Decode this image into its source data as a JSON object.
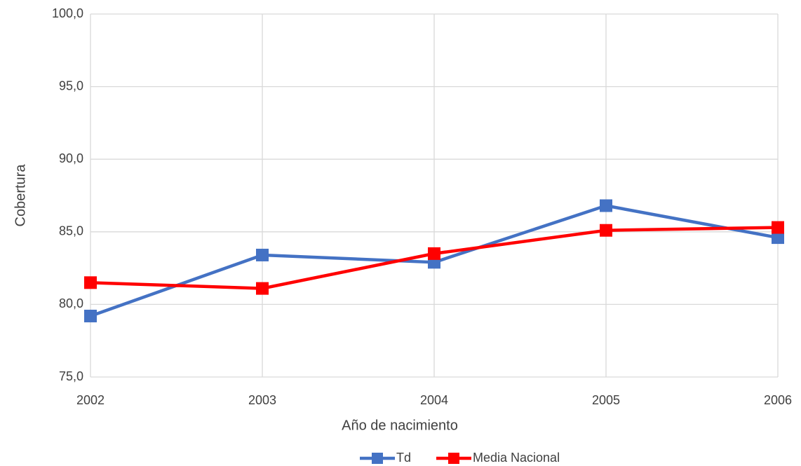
{
  "chart_data": {
    "type": "line",
    "x": [
      2002,
      2003,
      2004,
      2005,
      2006
    ],
    "xlim": [
      2002,
      2006
    ],
    "xticks": [
      2002,
      2003,
      2004,
      2005,
      2006
    ],
    "ylim": [
      75,
      100
    ],
    "yticks": [
      {
        "value": 75,
        "label": "75,0"
      },
      {
        "value": 80,
        "label": "80,0"
      },
      {
        "value": 85,
        "label": "85,0"
      },
      {
        "value": 90,
        "label": "90,0"
      },
      {
        "value": 95,
        "label": "95,0"
      },
      {
        "value": 100,
        "label": "100,0"
      }
    ],
    "x_label": "Año de nacimiento",
    "y_label": "Cobertura",
    "grid": true,
    "legend": "bottom",
    "series": [
      {
        "name": "Td",
        "color": "#4472c4",
        "values": [
          79.2,
          83.4,
          82.9,
          86.8,
          84.6
        ]
      },
      {
        "name": "Media Nacional",
        "color": "#ff0000",
        "values": [
          81.5,
          81.1,
          83.5,
          85.1,
          85.3
        ]
      }
    ]
  }
}
